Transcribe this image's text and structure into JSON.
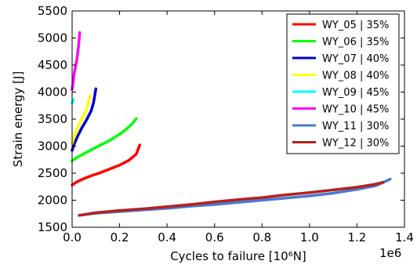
{
  "chart_data": {
    "type": "line",
    "xlabel": "Cycles to failure [10⁶N]",
    "ylabel": "Strain energy [J]",
    "x_offset_label": "1e6",
    "xlim": [
      0,
      1.4
    ],
    "ylim": [
      1500,
      5500
    ],
    "x_ticks": [
      "0.0",
      "0.2",
      "0.4",
      "0.6",
      "0.8",
      "1.0",
      "1.2",
      "1.4"
    ],
    "y_ticks": [
      "1500",
      "2000",
      "2500",
      "3000",
      "3500",
      "4000",
      "4500",
      "5000",
      "5500"
    ],
    "grid": false,
    "legend_position": "top-right",
    "series": [
      {
        "name": "WY_05 | 35%",
        "color": "#ff0000",
        "points": [
          [
            0,
            2280
          ],
          [
            0.02,
            2340
          ],
          [
            0.05,
            2400
          ],
          [
            0.08,
            2450
          ],
          [
            0.12,
            2510
          ],
          [
            0.16,
            2580
          ],
          [
            0.2,
            2650
          ],
          [
            0.24,
            2740
          ],
          [
            0.27,
            2850
          ],
          [
            0.285,
            3020
          ]
        ]
      },
      {
        "name": "WY_06 | 35%",
        "color": "#00ff00",
        "points": [
          [
            0,
            2730
          ],
          [
            0.02,
            2790
          ],
          [
            0.05,
            2860
          ],
          [
            0.08,
            2930
          ],
          [
            0.12,
            3020
          ],
          [
            0.16,
            3110
          ],
          [
            0.2,
            3220
          ],
          [
            0.23,
            3320
          ],
          [
            0.255,
            3420
          ],
          [
            0.27,
            3510
          ]
        ]
      },
      {
        "name": "WY_07 | 40%",
        "color": "#0000cc",
        "points": [
          [
            0,
            2920
          ],
          [
            0.01,
            3050
          ],
          [
            0.025,
            3200
          ],
          [
            0.04,
            3330
          ],
          [
            0.06,
            3480
          ],
          [
            0.08,
            3650
          ],
          [
            0.09,
            3800
          ],
          [
            0.1,
            4060
          ]
        ]
      },
      {
        "name": "WY_08 | 40%",
        "color": "#ffff00",
        "points": [
          [
            0,
            3050
          ],
          [
            0.01,
            3200
          ],
          [
            0.025,
            3360
          ],
          [
            0.04,
            3500
          ],
          [
            0.055,
            3620
          ],
          [
            0.065,
            3750
          ],
          [
            0.075,
            3930
          ]
        ]
      },
      {
        "name": "WY_09 | 45%",
        "color": "#00ffff",
        "points": [
          [
            0,
            3800
          ],
          [
            0.003,
            3830
          ],
          [
            0.006,
            3860
          ]
        ]
      },
      {
        "name": "WY_10 | 45%",
        "color": "#ff00ff",
        "points": [
          [
            0,
            4050
          ],
          [
            0.005,
            4200
          ],
          [
            0.01,
            4380
          ],
          [
            0.02,
            4600
          ],
          [
            0.027,
            4850
          ],
          [
            0.032,
            5100
          ]
        ]
      },
      {
        "name": "WY_11 | 30%",
        "color": "#4a78d0",
        "points": [
          [
            0.03,
            1720
          ],
          [
            0.1,
            1760
          ],
          [
            0.2,
            1790
          ],
          [
            0.3,
            1820
          ],
          [
            0.4,
            1850
          ],
          [
            0.5,
            1890
          ],
          [
            0.6,
            1920
          ],
          [
            0.7,
            1960
          ],
          [
            0.8,
            2000
          ],
          [
            0.9,
            2040
          ],
          [
            1.0,
            2080
          ],
          [
            1.1,
            2130
          ],
          [
            1.2,
            2200
          ],
          [
            1.28,
            2270
          ],
          [
            1.34,
            2390
          ]
        ]
      },
      {
        "name": "WY_12 | 30%",
        "color": "#b22222",
        "points": [
          [
            0.03,
            1720
          ],
          [
            0.1,
            1770
          ],
          [
            0.2,
            1810
          ],
          [
            0.3,
            1840
          ],
          [
            0.4,
            1880
          ],
          [
            0.5,
            1920
          ],
          [
            0.6,
            1970
          ],
          [
            0.7,
            2010
          ],
          [
            0.8,
            2050
          ],
          [
            0.9,
            2100
          ],
          [
            1.0,
            2140
          ],
          [
            1.1,
            2190
          ],
          [
            1.2,
            2240
          ],
          [
            1.27,
            2290
          ],
          [
            1.31,
            2330
          ]
        ]
      }
    ]
  }
}
